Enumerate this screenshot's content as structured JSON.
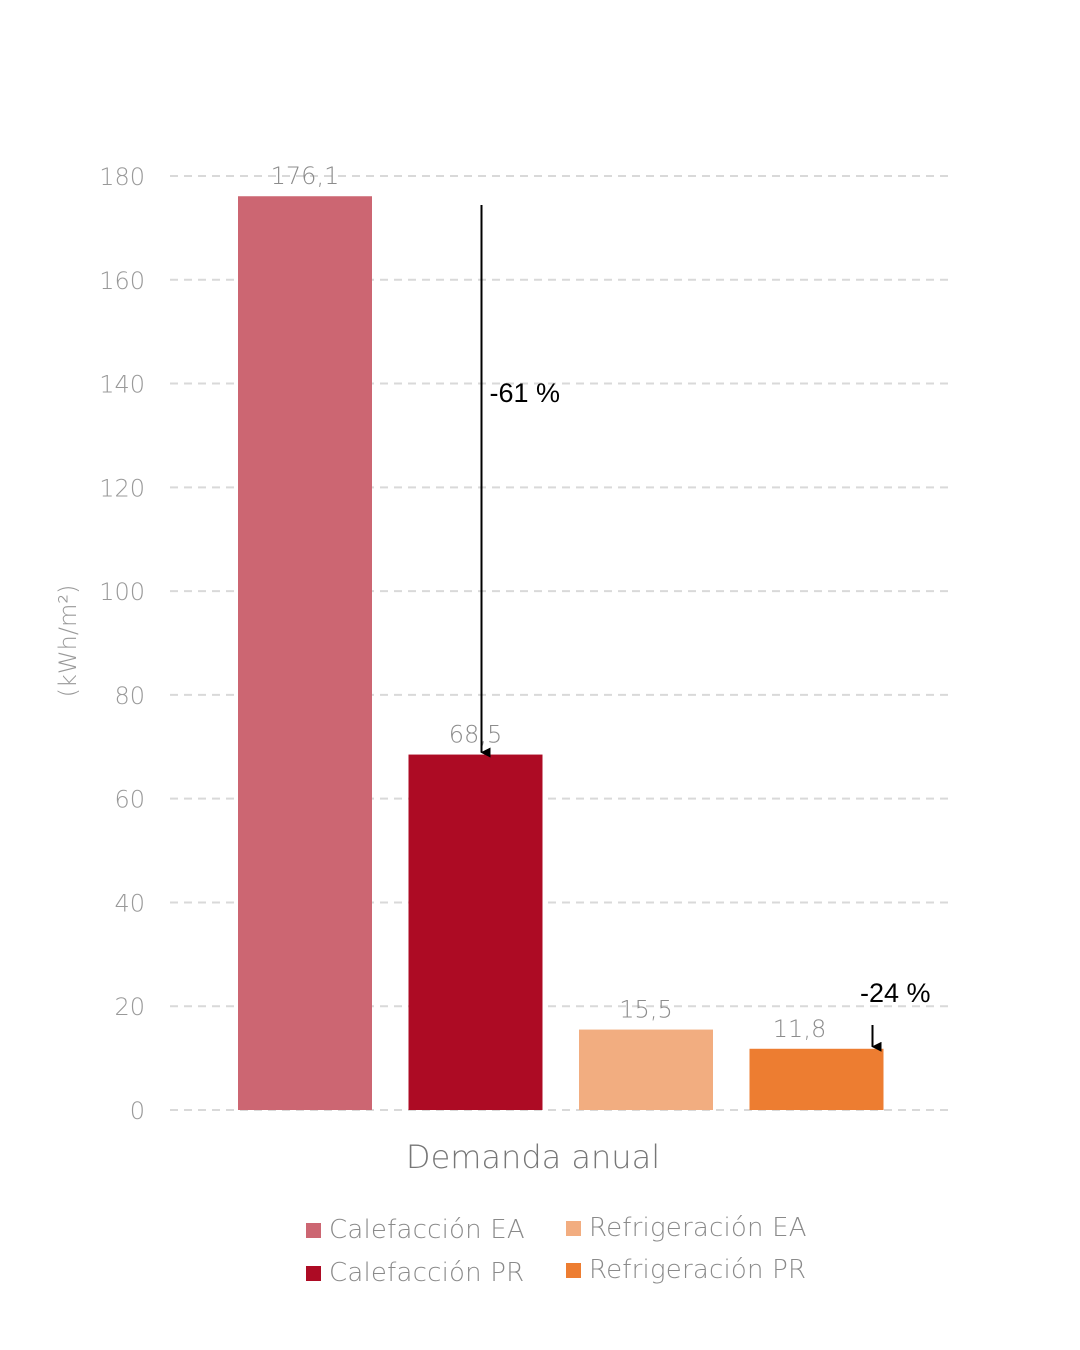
{
  "chart_data": {
    "type": "bar",
    "xlabel": "Demanda anual",
    "ylabel": "(kWh/m²)",
    "ylim": [
      0,
      180
    ],
    "yticks": [
      "0",
      "20",
      "40",
      "60",
      "80",
      "100",
      "120",
      "140",
      "160",
      "180"
    ],
    "grid": "horizontal dashed",
    "legend_position": "bottom",
    "series": [
      {
        "name": "Calefacción EA",
        "value": 176.1,
        "label": "176,1",
        "color": "#cc6672"
      },
      {
        "name": "Calefacción PR",
        "value": 68.5,
        "label": "68,5",
        "color": "#ad0b24"
      },
      {
        "name": "Refrigeración EA",
        "value": 15.5,
        "label": "15,5",
        "color": "#f2ad80"
      },
      {
        "name": "Refrigeración PR",
        "value": 11.8,
        "label": "11,8",
        "color": "#ed7d31"
      }
    ],
    "annotations": [
      {
        "text": "-61 %",
        "from_series": 0,
        "to_series": 1,
        "from_value": 176.1,
        "to_value": 68.5
      },
      {
        "text": "-24 %",
        "from_series": 2,
        "to_series": 3,
        "from_value": 15.5,
        "to_value": 11.8
      }
    ]
  },
  "legend": {
    "items": [
      {
        "label": "Calefacción EA",
        "color": "#cc6672"
      },
      {
        "label": "Refrigeración EA",
        "color": "#f2ad80"
      },
      {
        "label": "Calefacción PR",
        "color": "#ad0b24"
      },
      {
        "label": "Refrigeración PR",
        "color": "#ed7d31"
      }
    ]
  }
}
